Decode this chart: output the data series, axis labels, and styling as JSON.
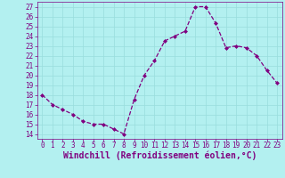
{
  "x": [
    0,
    1,
    2,
    3,
    4,
    5,
    6,
    7,
    8,
    9,
    10,
    11,
    12,
    13,
    14,
    15,
    16,
    17,
    18,
    19,
    20,
    21,
    22,
    23
  ],
  "y": [
    18,
    17,
    16.5,
    16,
    15.3,
    15,
    15,
    14.5,
    14,
    17.5,
    20,
    21.5,
    23.5,
    24,
    24.5,
    27,
    27,
    25.3,
    22.8,
    23,
    22.8,
    22,
    20.5,
    19.2
  ],
  "line_color": "#800080",
  "marker": "D",
  "marker_size": 2.0,
  "bg_color": "#b3f0f0",
  "grid_color": "#99dddd",
  "xlabel": "Windchill (Refroidissement éolien,°C)",
  "xlim": [
    -0.5,
    23.5
  ],
  "ylim": [
    13.5,
    27.5
  ],
  "yticks": [
    14,
    15,
    16,
    17,
    18,
    19,
    20,
    21,
    22,
    23,
    24,
    25,
    26,
    27
  ],
  "xticks": [
    0,
    1,
    2,
    3,
    4,
    5,
    6,
    7,
    8,
    9,
    10,
    11,
    12,
    13,
    14,
    15,
    16,
    17,
    18,
    19,
    20,
    21,
    22,
    23
  ],
  "tick_label_color": "#800080",
  "tick_label_size": 5.5,
  "xlabel_size": 7.0,
  "xlabel_color": "#800080",
  "spine_color": "#800080",
  "linewidth": 0.9
}
